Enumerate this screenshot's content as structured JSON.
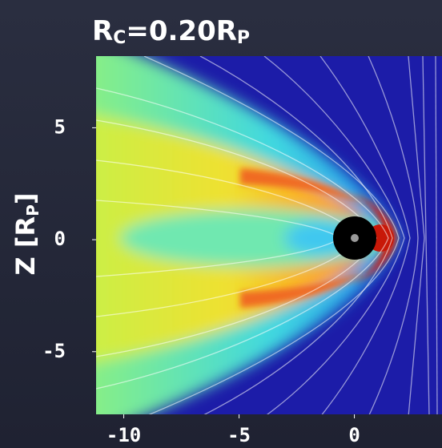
{
  "chart_data": {
    "type": "field",
    "title": [
      "R",
      "C",
      "=0.20R",
      "P"
    ],
    "y_label": [
      "Z [R",
      "P",
      "]"
    ],
    "xlim": [
      -11.2,
      3.8
    ],
    "xticks": [
      -10,
      -5,
      0
    ],
    "ylim": [
      -7.8,
      8.2
    ],
    "yticks": [
      -5,
      0,
      5
    ]
  }
}
